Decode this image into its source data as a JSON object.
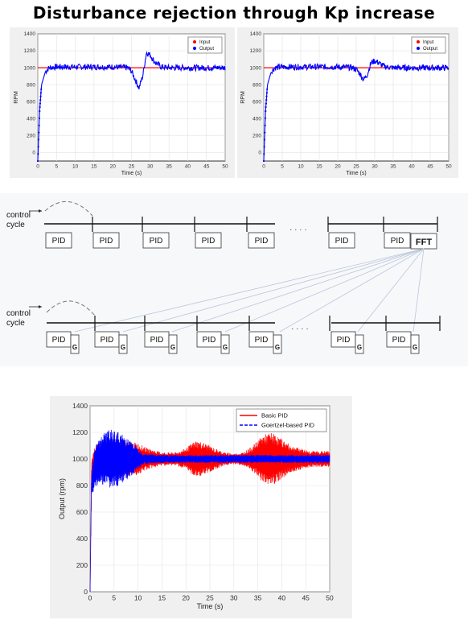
{
  "page": {
    "title": "Disturbance rejection through Kp increase"
  },
  "chart_data": [
    {
      "type": "line",
      "title": "",
      "xlabel": "Time (s)",
      "ylabel": "RPM",
      "xlim": [
        0,
        50
      ],
      "ylim": [
        -100,
        1400
      ],
      "xticks": [
        0,
        5,
        10,
        15,
        20,
        25,
        30,
        35,
        40,
        45,
        50
      ],
      "yticks": [
        0,
        200,
        400,
        600,
        800,
        1000,
        1200,
        1400
      ],
      "grid": true,
      "legend": "top-right",
      "series": [
        {
          "name": "Input",
          "color": "#ff0000",
          "x": [
            0,
            50
          ],
          "values": [
            1000,
            1000
          ]
        },
        {
          "name": "Output",
          "color": "#0000ff",
          "x": [
            0,
            0.5,
            1,
            2,
            3,
            5,
            10,
            15,
            20,
            24,
            25,
            26,
            27,
            28,
            29,
            30,
            31,
            32,
            33,
            35,
            40,
            45,
            50
          ],
          "values": [
            -100,
            500,
            800,
            950,
            1000,
            1010,
            1010,
            1010,
            1010,
            1000,
            960,
            860,
            760,
            900,
            1180,
            1150,
            1080,
            1040,
            1010,
            1000,
            1000,
            1000,
            1000
          ]
        }
      ]
    },
    {
      "type": "line",
      "title": "",
      "xlabel": "Time (s)",
      "ylabel": "RPM",
      "xlim": [
        0,
        50
      ],
      "ylim": [
        -100,
        1400
      ],
      "xticks": [
        0,
        5,
        10,
        15,
        20,
        25,
        30,
        35,
        40,
        45,
        50
      ],
      "yticks": [
        0,
        200,
        400,
        600,
        800,
        1000,
        1200,
        1400
      ],
      "grid": true,
      "legend": "top-right",
      "series": [
        {
          "name": "Input",
          "color": "#ff0000",
          "x": [
            0,
            50
          ],
          "values": [
            1000,
            1000
          ]
        },
        {
          "name": "Output",
          "color": "#0000ff",
          "x": [
            0,
            0.5,
            1,
            2,
            3,
            5,
            10,
            15,
            20,
            24,
            25,
            26,
            27,
            28,
            29,
            30,
            31,
            32,
            33,
            35,
            40,
            45,
            50
          ],
          "values": [
            -100,
            500,
            800,
            950,
            1000,
            1010,
            1010,
            1010,
            1010,
            1000,
            980,
            930,
            860,
            920,
            1060,
            1080,
            1060,
            1030,
            1010,
            1000,
            1000,
            1000,
            1000
          ]
        }
      ]
    },
    {
      "type": "line",
      "title": "",
      "xlabel": "Time (s)",
      "ylabel": "Output (rpm)",
      "xlim": [
        0,
        50
      ],
      "ylim": [
        0,
        1400
      ],
      "xticks": [
        0,
        5,
        10,
        15,
        20,
        25,
        30,
        35,
        40,
        45,
        50
      ],
      "yticks": [
        0,
        200,
        400,
        600,
        800,
        1000,
        1200,
        1400
      ],
      "grid": true,
      "legend": "top-right",
      "series": [
        {
          "name": "Basic PID",
          "color": "#ff0000",
          "x": [
            0,
            0.3,
            1,
            2,
            4,
            6,
            8,
            10,
            12,
            15,
            18,
            20,
            22,
            24,
            26,
            28,
            30,
            32,
            34,
            36,
            38,
            40,
            42,
            44,
            46,
            48,
            50
          ],
          "amplitude": [
            0,
            80,
            100,
            120,
            140,
            150,
            130,
            120,
            80,
            50,
            50,
            80,
            140,
            120,
            80,
            50,
            40,
            50,
            100,
            180,
            200,
            150,
            100,
            80,
            60,
            60,
            60
          ],
          "values": [
            0,
            900,
            1000,
            1000,
            1000,
            1000,
            1000,
            1000,
            1000,
            1000,
            1000,
            1000,
            1000,
            1000,
            1000,
            1000,
            1000,
            1000,
            1000,
            1000,
            1000,
            1000,
            1000,
            1000,
            1000,
            1000,
            1000
          ]
        },
        {
          "name": "Goertzel-based PID",
          "color": "#0000ff",
          "x": [
            0,
            0.3,
            1,
            2,
            3,
            4,
            5,
            6,
            7,
            8,
            9,
            10,
            11,
            15,
            20,
            25,
            30,
            35,
            40,
            45,
            50
          ],
          "amplitude": [
            0,
            100,
            150,
            180,
            200,
            220,
            220,
            200,
            180,
            150,
            120,
            80,
            40,
            30,
            30,
            30,
            30,
            30,
            30,
            30,
            30
          ],
          "values": [
            0,
            800,
            940,
            980,
            1000,
            1000,
            1000,
            1000,
            1000,
            1000,
            1000,
            1000,
            1000,
            1000,
            1000,
            1000,
            1000,
            1000,
            1000,
            1000,
            1000
          ]
        }
      ]
    }
  ],
  "diagram": {
    "top_label": "control\ncycle",
    "bottom_label": "control\ncycle",
    "block_label": "PID",
    "fft_label": "FFT",
    "g_label": "G",
    "ellipsis": "· · · ·"
  }
}
